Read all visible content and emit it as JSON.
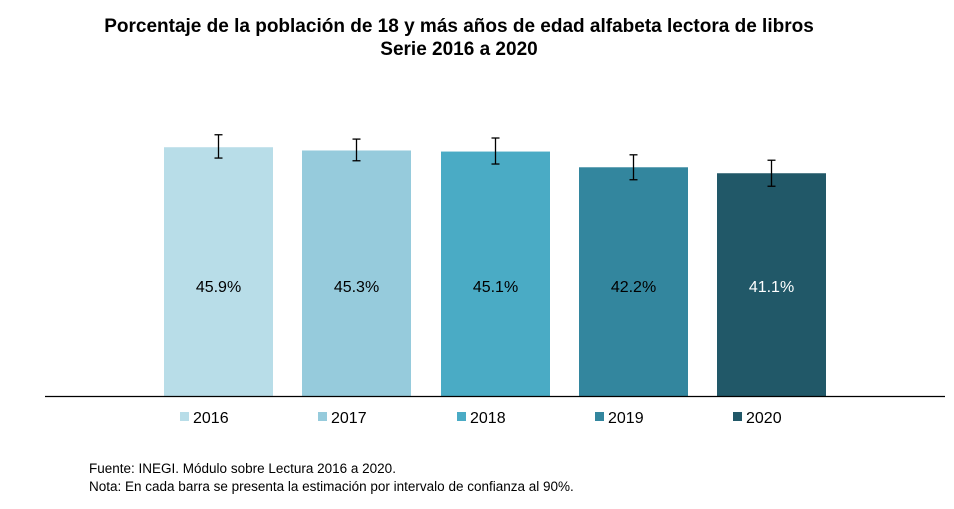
{
  "chart_data": {
    "type": "bar",
    "title": "Porcentaje de la población de 18 y más años de edad alfabeta lectora de libros",
    "subtitle": "Serie 2016 a 2020",
    "categories": [
      "2016",
      "2017",
      "2018",
      "2019",
      "2020"
    ],
    "values": [
      45.9,
      45.3,
      45.1,
      42.2,
      41.1
    ],
    "data_labels": [
      "45.9%",
      "45.3%",
      "45.1%",
      "42.2%",
      "41.1%"
    ],
    "error_bars": {
      "confidence": "90%",
      "lower": [
        43.9,
        43.4,
        42.8,
        39.9,
        38.7
      ],
      "upper": [
        48.2,
        47.4,
        47.6,
        44.5,
        43.5
      ]
    },
    "colors": [
      "#b8dde8",
      "#96cbdc",
      "#4aabc5",
      "#33869e",
      "#215868"
    ],
    "label_colors": [
      "#000000",
      "#000000",
      "#000000",
      "#000000",
      "#ffffff"
    ],
    "ylim": [
      0,
      50
    ],
    "grid": false,
    "legend_position": "bottom",
    "xlabel": "",
    "ylabel": ""
  },
  "notes": {
    "source": "Fuente: INEGI. Módulo sobre Lectura 2016 a 2020.",
    "note": "Nota: En cada barra se presenta la estimación por intervalo de confianza al 90%."
  }
}
